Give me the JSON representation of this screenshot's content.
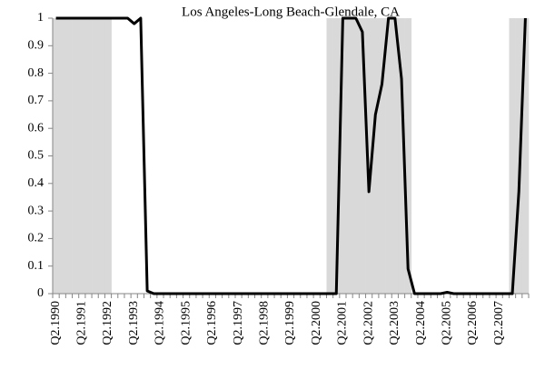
{
  "chart_data": {
    "type": "line",
    "title": "Los Angeles-Long Beach-Glendale, CA",
    "categories": [
      "Q2.1990",
      null,
      null,
      null,
      "Q2.1991",
      null,
      null,
      null,
      "Q2.1992",
      null,
      null,
      null,
      "Q2.1993",
      null,
      null,
      null,
      "Q2.1994",
      null,
      null,
      null,
      "Q2.1995",
      null,
      null,
      null,
      "Q2.1996",
      null,
      null,
      null,
      "Q2.1997",
      null,
      null,
      null,
      "Q2.1998",
      null,
      null,
      null,
      "Q2.1999",
      null,
      null,
      null,
      "Q2.2000",
      null,
      null,
      null,
      "Q2.2001",
      null,
      null,
      null,
      "Q2.2002",
      null,
      null,
      null,
      "Q2.2003",
      null,
      null,
      null,
      "Q2.2004",
      null,
      null,
      null,
      "Q2.2005",
      null,
      null,
      null,
      "Q2.2006",
      null,
      null,
      null,
      "Q2.2007",
      null,
      null,
      null,
      null
    ],
    "values": [
      1,
      1,
      1,
      1,
      1,
      1,
      1,
      1,
      1,
      1,
      1,
      1,
      0.98,
      1,
      0.01,
      0,
      0,
      0,
      0,
      0,
      0,
      0,
      0,
      0,
      0,
      0,
      0,
      0,
      0,
      0,
      0,
      0,
      0,
      0,
      0,
      0,
      0,
      0,
      0,
      0,
      0,
      0,
      0,
      0,
      1,
      1,
      1,
      0.95,
      0.37,
      0.65,
      0.76,
      1,
      1,
      0.78,
      0.09,
      0,
      0,
      0,
      0,
      0,
      0.005,
      0,
      0,
      0,
      0,
      0,
      0,
      0,
      0,
      0,
      0,
      0.37,
      1
    ],
    "shading": [
      1,
      1,
      1,
      1,
      1,
      1,
      1,
      1,
      1,
      0,
      0,
      0,
      0,
      0,
      0,
      0,
      0,
      0,
      0,
      0,
      0,
      0,
      0,
      0,
      0,
      0,
      0,
      0,
      0,
      0,
      0,
      0,
      0,
      0,
      0,
      0,
      0,
      0,
      0,
      0,
      0,
      0,
      1,
      1,
      1,
      1,
      1,
      1,
      1,
      1,
      1,
      1,
      1,
      1,
      1,
      0,
      0,
      0,
      0,
      0,
      0,
      0,
      0,
      0,
      0,
      0,
      0,
      0,
      0,
      0,
      1,
      1,
      1
    ],
    "color": "#000000",
    "shade_color": "#d9d9d9",
    "ylim": [
      0,
      1
    ],
    "yticks": [
      0,
      0.1,
      0.2,
      0.3,
      0.4,
      0.5,
      0.6,
      0.7,
      0.8,
      0.9,
      1
    ]
  }
}
